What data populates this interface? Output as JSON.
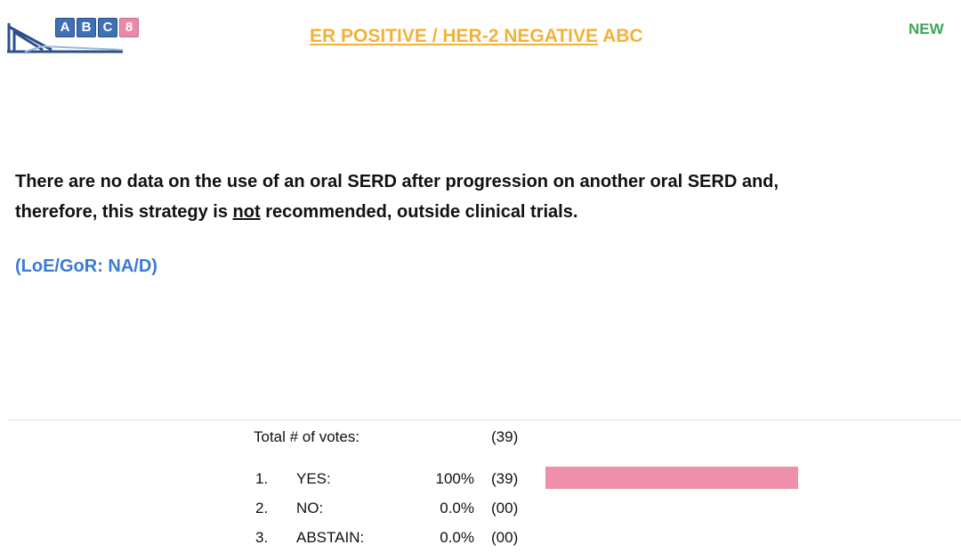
{
  "header": {
    "logo": [
      "A",
      "B",
      "C",
      "8"
    ],
    "title_underlined": "ER POSITIVE / HER-2 NEGATIVE",
    "title_rest": "ABC",
    "badge": "NEW"
  },
  "statement": [
    "There are no data on the use of an oral SERD after progression on another oral SERD and,",
    "therefore, this strategy is",
    "not",
    "recommended, outside clinical trials."
  ],
  "evidence": "(LoE/GoR: NA/D)",
  "votes": {
    "total_label": "Total # of votes:",
    "total": "(39)",
    "numbers": [
      "1.",
      "2.",
      "3."
    ],
    "labels": [
      "YES:",
      "NO:",
      "ABSTAIN:"
    ],
    "values": [
      100,
      0,
      0
    ],
    "value_labels": [
      "100%",
      "0.0%",
      "0.0%"
    ],
    "counts": [
      "(39)",
      "(00)",
      "(00)"
    ],
    "xlim": [
      0,
      100
    ],
    "color": "#ee8fab"
  }
}
